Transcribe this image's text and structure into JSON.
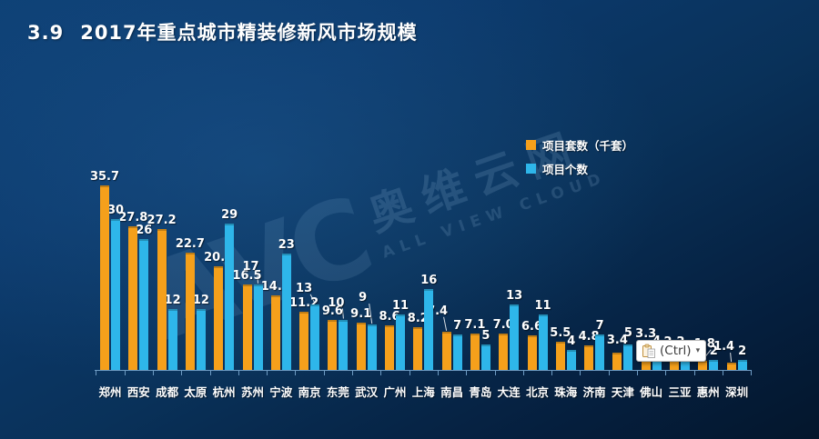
{
  "header": {
    "number": "3.9",
    "text": "2017年重点城市精装修新风市场规模"
  },
  "legend": [
    {
      "label": "项目套数（千套）",
      "color": "#F5A01B"
    },
    {
      "label": "项目个数",
      "color": "#2EB6EA"
    }
  ],
  "watermark": {
    "logo": "AVC",
    "cn": "奥维云网",
    "en": "ALL VIEW CLOUD"
  },
  "paste_button": {
    "label": "(Ctrl)",
    "arrow": "▾"
  },
  "chart_data": {
    "type": "bar",
    "title": "2017年重点城市精装修新风市场规模",
    "categories": [
      "郑州",
      "西安",
      "成都",
      "太原",
      "杭州",
      "苏州",
      "宁波",
      "南京",
      "东莞",
      "武汉",
      "广州",
      "上海",
      "南昌",
      "青岛",
      "大连",
      "北京",
      "珠海",
      "济南",
      "天津",
      "佛山",
      "三亚",
      "惠州",
      "深圳"
    ],
    "series": [
      {
        "name": "项目套数（千套）",
        "color": "#F5A01B",
        "values": [
          35.7,
          27.8,
          27.2,
          22.7,
          20.0,
          16.5,
          14.4,
          11.2,
          9.6,
          9.1,
          8.6,
          8.2,
          7.4,
          7.1,
          7.0,
          6.6,
          5.5,
          4.8,
          3.4,
          3.3,
          2.2,
          1.8,
          1.4
        ],
        "labels": [
          "35.7",
          "27.8",
          "27.2",
          "22.7",
          "20.0",
          "16.5",
          "14.4",
          "11.2",
          "9.6",
          "9.1",
          "8.6",
          "8.2",
          "7.4",
          "7.1",
          "7.0",
          "6.6",
          "5.5",
          "4.8",
          "3.4",
          "3.3",
          "2.2",
          "1.8",
          "1.4"
        ]
      },
      {
        "name": "项目个数",
        "color": "#2EB6EA",
        "values": [
          30,
          26,
          12,
          12,
          29,
          17,
          23,
          13,
          10,
          9,
          11,
          16,
          7,
          5,
          13,
          11,
          4,
          7,
          5,
          4,
          2,
          2,
          2
        ],
        "labels": [
          "30",
          "26",
          "12",
          "12",
          "29",
          "17",
          "23",
          "13",
          "10",
          "9",
          "11",
          "16",
          "7",
          "5",
          "13",
          "11",
          "4",
          "7",
          "5",
          "4",
          "2",
          "2",
          "2"
        ]
      }
    ],
    "ylim": [
      0,
      40
    ],
    "xlabel": "",
    "ylabel": "",
    "grid": false,
    "axes_hidden": true,
    "legend_position": "top-right",
    "data_labels": true
  }
}
